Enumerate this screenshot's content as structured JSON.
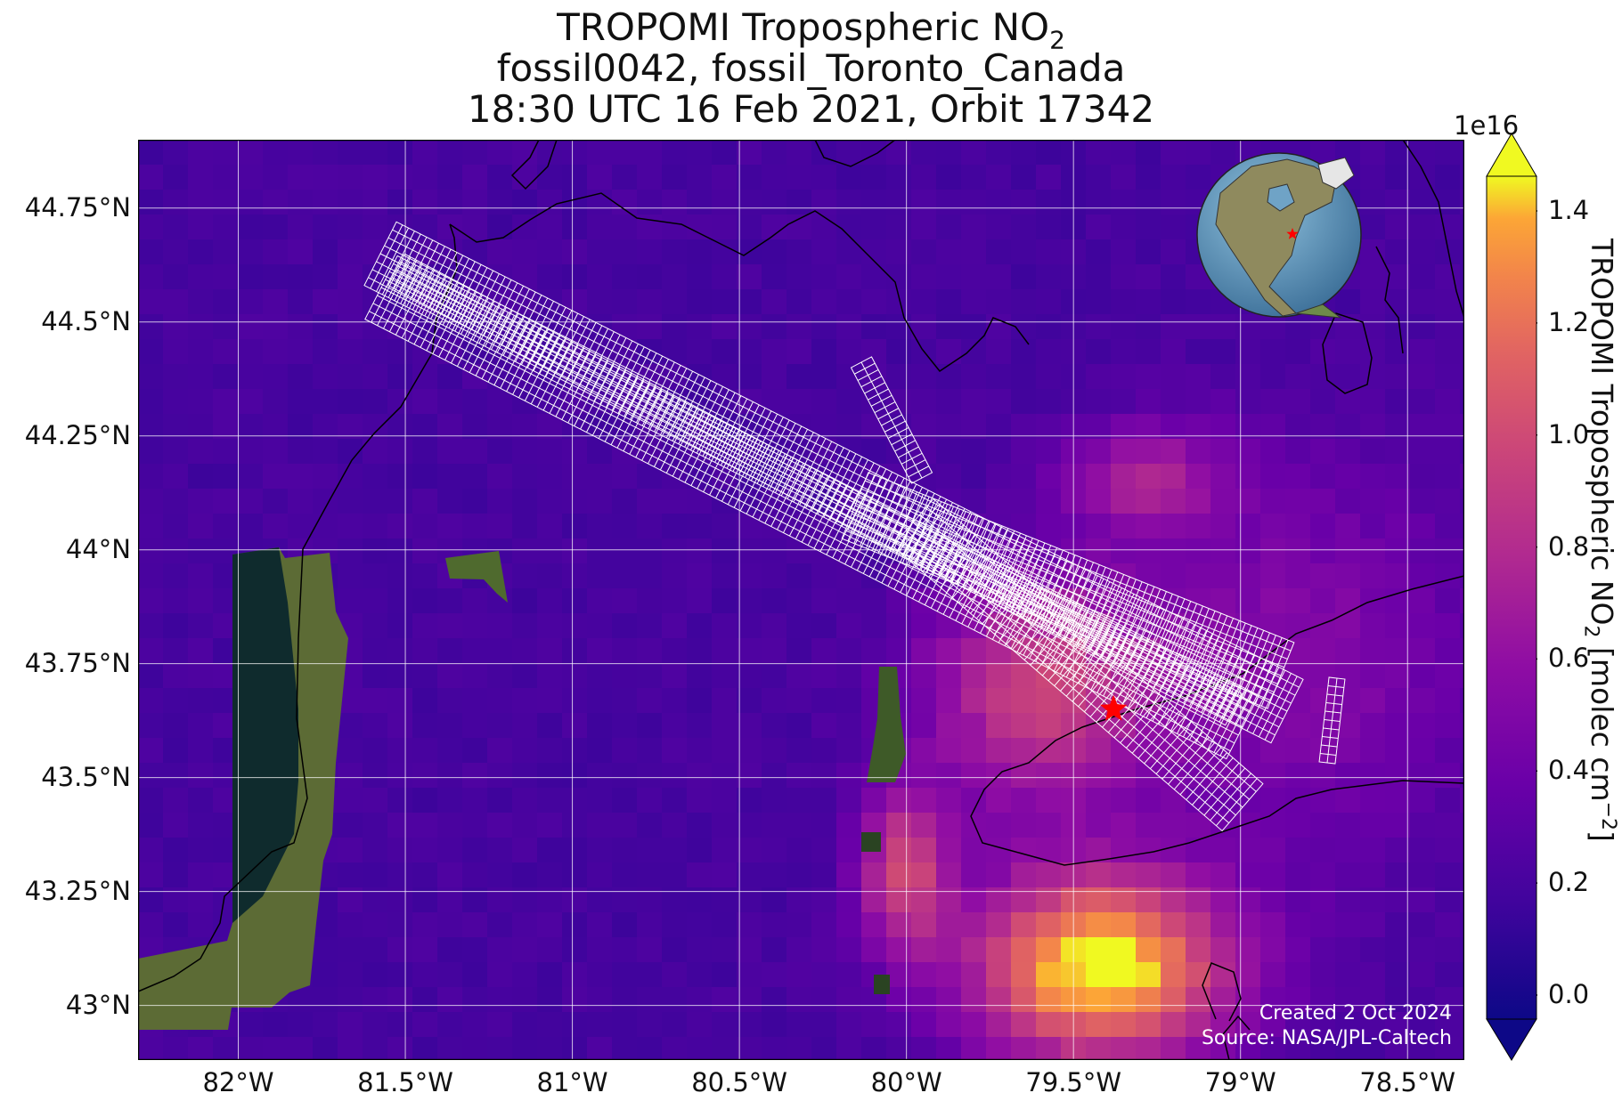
{
  "title": {
    "line1_prefix": "TROPOMI Tropospheric NO",
    "line1_sub": "2",
    "line2": "fossil0042, fossil_Toronto_Canada",
    "line3": "18:30 UTC 16 Feb 2021, Orbit 17342"
  },
  "map": {
    "lon_range": [
      -82.3,
      -78.33
    ],
    "lat_range": [
      42.88,
      44.9
    ],
    "target_lon": -79.38,
    "target_lat": 43.65,
    "marker_color": "#ff0000",
    "grid_color": "#ffffff"
  },
  "y_ticks": [
    {
      "value": 44.75,
      "label": "44.75°N"
    },
    {
      "value": 44.5,
      "label": "44.5°N"
    },
    {
      "value": 44.25,
      "label": "44.25°N"
    },
    {
      "value": 44.0,
      "label": "44°N"
    },
    {
      "value": 43.75,
      "label": "43.75°N"
    },
    {
      "value": 43.5,
      "label": "43.5°N"
    },
    {
      "value": 43.25,
      "label": "43.25°N"
    },
    {
      "value": 43.0,
      "label": "43°N"
    }
  ],
  "x_ticks": [
    {
      "value": -82.0,
      "label": "82°W"
    },
    {
      "value": -81.5,
      "label": "81.5°W"
    },
    {
      "value": -81.0,
      "label": "81°W"
    },
    {
      "value": -80.5,
      "label": "80.5°W"
    },
    {
      "value": -80.0,
      "label": "80°W"
    },
    {
      "value": -79.5,
      "label": "79.5°W"
    },
    {
      "value": -79.0,
      "label": "79°W"
    },
    {
      "value": -78.5,
      "label": "78.5°W"
    }
  ],
  "colorbar": {
    "exponent": "1e16",
    "ticks": [
      "1.4",
      "1.2",
      "1.0",
      "0.8",
      "0.6",
      "0.4",
      "0.2",
      "0.0"
    ],
    "label_prefix": "TROPOMI Tropospheric NO",
    "label_sub": "2",
    "label_mid": " [molec cm",
    "label_sup": "−2",
    "label_suffix": "]",
    "colormap": "plasma"
  },
  "credits": {
    "line1": "Created 2 Oct 2024",
    "line2": "Source: NASA/JPL-Caltech"
  },
  "inset": {
    "type": "globe",
    "marker_color": "#ff0000"
  }
}
